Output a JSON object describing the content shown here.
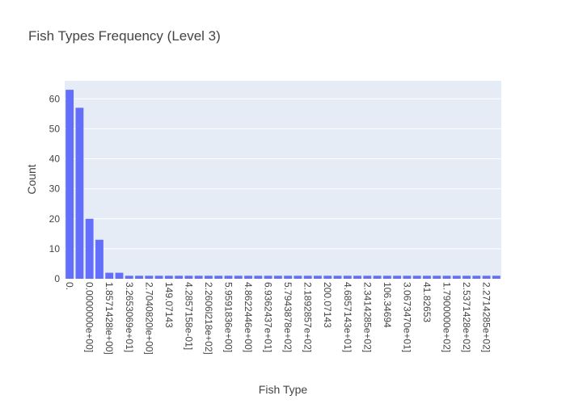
{
  "chart_data": {
    "type": "bar",
    "title": "Fish Types Frequency (Level 3)",
    "xlabel": "Fish Type",
    "ylabel": "Count",
    "ylim": [
      0,
      66
    ],
    "yticks": [
      0,
      10,
      20,
      30,
      40,
      50,
      60
    ],
    "grid": true,
    "legend": "none",
    "bar_color": "#636efa",
    "plot_background": "#e5ecf6",
    "categories": [
      "0.",
      "",
      "0.0000000e+00]",
      "",
      "1.8571428le+00]",
      "",
      "3.2653069e+01]",
      "",
      "2.7040820le+00]",
      "",
      "149.07143",
      "",
      "4.2857158e-01]",
      "",
      "2.2606l218e+02]",
      "",
      "5.9591836e+00]",
      "",
      "4.8622446e+00]",
      "",
      "6.9362437e+01]",
      "",
      "5.7943878e+02]",
      "",
      "2.1892857e+02]",
      "",
      "200.07143",
      "",
      "4.6857143e+01]",
      "",
      "2.3414285e+02]",
      "",
      "106.34694",
      "",
      "3.0673470e+01]",
      "",
      "41.82653",
      "",
      "1.7900000e+02]",
      "",
      "2.5371428e+02]",
      "",
      "2.2714285e+02]",
      ""
    ],
    "values": [
      63,
      57,
      20,
      13,
      2,
      2,
      1,
      1,
      1,
      1,
      1,
      1,
      1,
      1,
      1,
      1,
      1,
      1,
      1,
      1,
      1,
      1,
      1,
      1,
      1,
      1,
      1,
      1,
      1,
      1,
      1,
      1,
      1,
      1,
      1,
      1,
      1,
      1,
      1,
      1,
      1,
      1,
      1,
      1
    ]
  }
}
